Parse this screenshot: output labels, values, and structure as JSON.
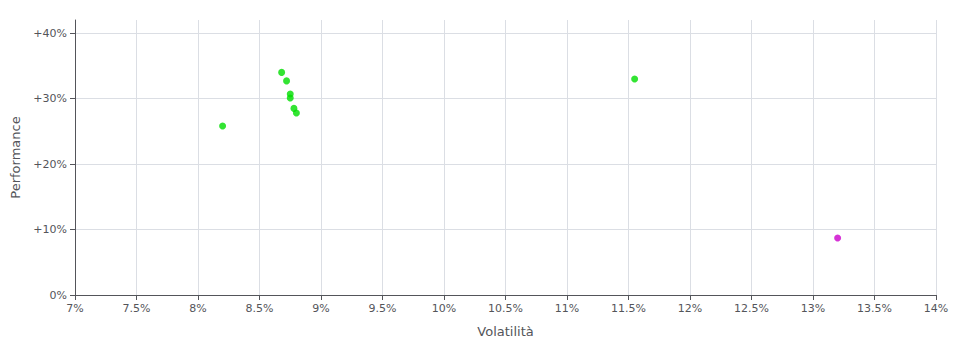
{
  "chart_data": {
    "type": "scatter",
    "xlabel": "Volatilità",
    "ylabel": "Performance",
    "xlim": [
      0.07,
      0.14
    ],
    "ylim": [
      0.0,
      0.42
    ],
    "xticks": [
      {
        "value": 0.07,
        "label": "7%"
      },
      {
        "value": 0.075,
        "label": "7.5%"
      },
      {
        "value": 0.08,
        "label": "8%"
      },
      {
        "value": 0.085,
        "label": "8.5%"
      },
      {
        "value": 0.09,
        "label": "9%"
      },
      {
        "value": 0.095,
        "label": "9.5%"
      },
      {
        "value": 0.1,
        "label": "10%"
      },
      {
        "value": 0.105,
        "label": "10.5%"
      },
      {
        "value": 0.11,
        "label": "11%"
      },
      {
        "value": 0.115,
        "label": "11.5%"
      },
      {
        "value": 0.12,
        "label": "12%"
      },
      {
        "value": 0.125,
        "label": "12.5%"
      },
      {
        "value": 0.13,
        "label": "13%"
      },
      {
        "value": 0.135,
        "label": "13.5%"
      },
      {
        "value": 0.14,
        "label": "14%"
      }
    ],
    "yticks": [
      {
        "value": 0.0,
        "label": "0%"
      },
      {
        "value": 0.1,
        "label": "+10%"
      },
      {
        "value": 0.2,
        "label": "+20%"
      },
      {
        "value": 0.3,
        "label": "+30%"
      },
      {
        "value": 0.4,
        "label": "+40%"
      }
    ],
    "grid": true,
    "series": [
      {
        "color": "#00dd00",
        "x": [
          0.082,
          0.0868,
          0.0872,
          0.0875,
          0.0875,
          0.0878,
          0.088,
          0.1155
        ],
        "values": [
          0.258,
          0.34,
          0.327,
          0.307,
          0.301,
          0.285,
          0.278,
          0.33
        ]
      },
      {
        "color": "#cc00cc",
        "x": [
          0.132
        ],
        "values": [
          0.087
        ]
      }
    ]
  }
}
